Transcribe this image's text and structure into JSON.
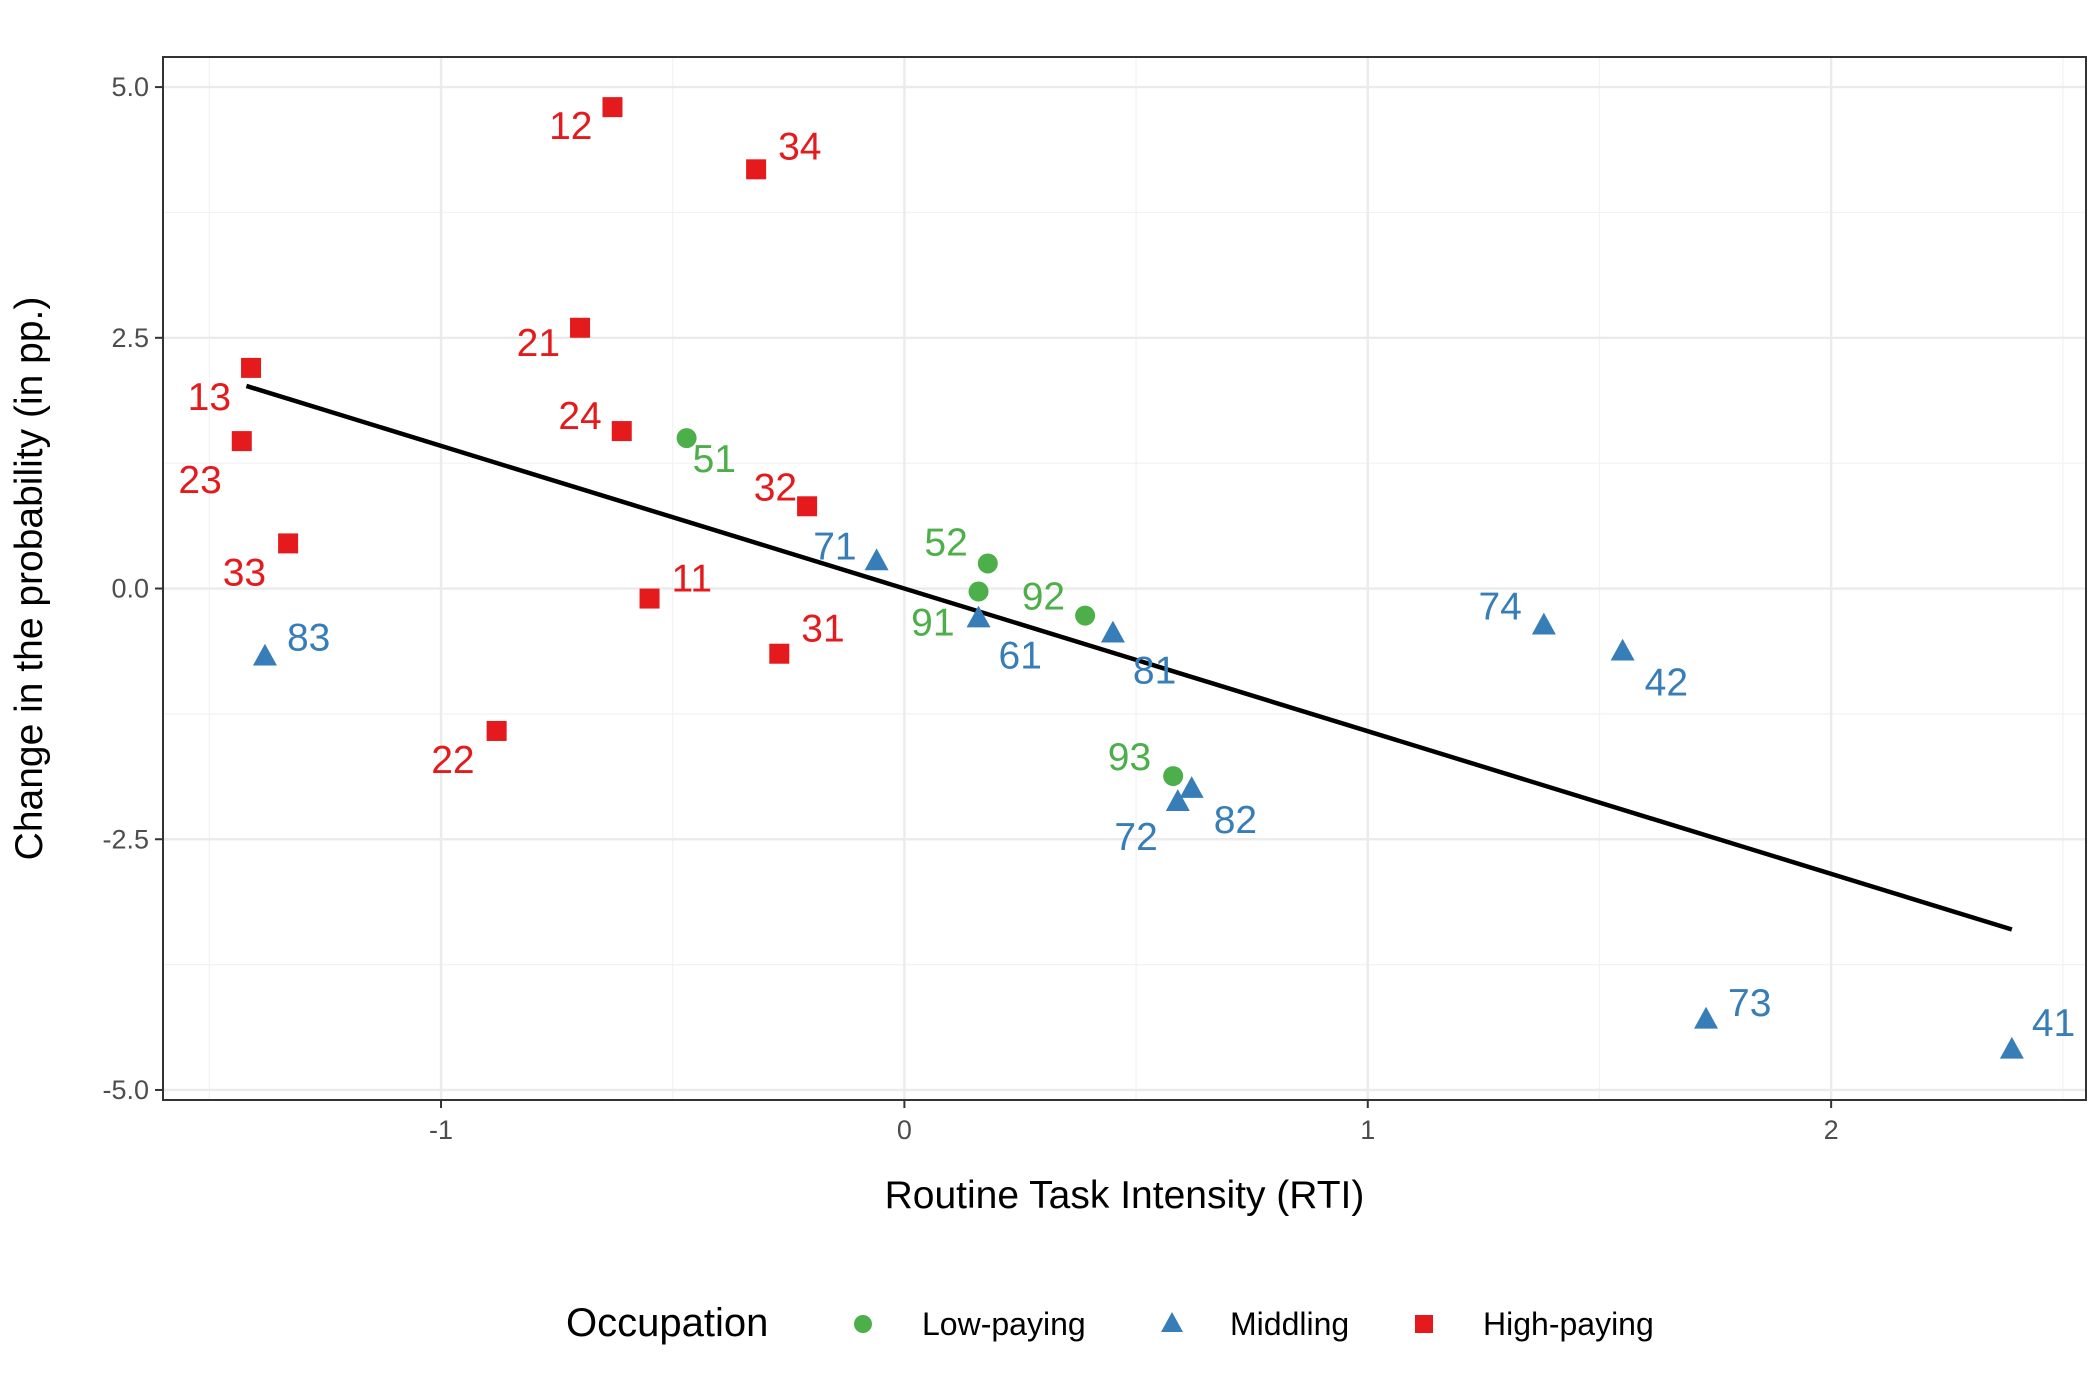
{
  "chart_data": {
    "type": "scatter",
    "title": "",
    "xlabel": "Routine Task Intensity (RTI)",
    "ylabel": "Change in the probability (in pp.)",
    "xlim": [
      -1.6,
      2.55
    ],
    "ylim": [
      -5.1,
      5.3
    ],
    "x_ticks": [
      -1,
      0,
      1,
      2
    ],
    "x_tick_labels": [
      "-1",
      "0",
      "1",
      "2"
    ],
    "y_ticks": [
      5.0,
      2.5,
      0.0,
      -2.5,
      -5.0
    ],
    "y_tick_labels": [
      "5.0",
      "2.5",
      "0.0",
      "-2.5",
      "-5.0"
    ],
    "grid": true,
    "legend": {
      "title": "Occupation",
      "position": "bottom"
    },
    "series": [
      {
        "name": "Low-paying",
        "color": "#4daf4a",
        "shape": "circle",
        "points": [
          {
            "label": "51",
            "x": -0.47,
            "y": 1.5
          },
          {
            "label": "52",
            "x": 0.18,
            "y": 0.25
          },
          {
            "label": "91",
            "x": 0.16,
            "y": -0.03
          },
          {
            "label": "92",
            "x": 0.39,
            "y": -0.27
          },
          {
            "label": "93",
            "x": 0.58,
            "y": -1.87
          }
        ]
      },
      {
        "name": "Middling",
        "color": "#377eb8",
        "shape": "triangle",
        "points": [
          {
            "label": "83",
            "x": -1.38,
            "y": -0.68
          },
          {
            "label": "71",
            "x": -0.06,
            "y": 0.27
          },
          {
            "label": "61",
            "x": 0.16,
            "y": -0.3
          },
          {
            "label": "81",
            "x": 0.45,
            "y": -0.45
          },
          {
            "label": "72",
            "x": 0.59,
            "y": -2.13
          },
          {
            "label": "82",
            "x": 0.62,
            "y": -2.0
          },
          {
            "label": "74",
            "x": 1.38,
            "y": -0.37
          },
          {
            "label": "42",
            "x": 1.55,
            "y": -0.63
          },
          {
            "label": "73",
            "x": 1.73,
            "y": -4.3
          },
          {
            "label": "41",
            "x": 2.39,
            "y": -4.6
          }
        ]
      },
      {
        "name": "High-paying",
        "color": "#e41a1c",
        "shape": "square",
        "points": [
          {
            "label": "12",
            "x": -0.63,
            "y": 4.8
          },
          {
            "label": "34",
            "x": -0.32,
            "y": 4.18
          },
          {
            "label": "21",
            "x": -0.7,
            "y": 2.6
          },
          {
            "label": "13",
            "x": -1.41,
            "y": 2.2
          },
          {
            "label": "24",
            "x": -0.61,
            "y": 1.57
          },
          {
            "label": "23",
            "x": -1.43,
            "y": 1.47
          },
          {
            "label": "32",
            "x": -0.21,
            "y": 0.82
          },
          {
            "label": "33",
            "x": -1.33,
            "y": 0.45
          },
          {
            "label": "11",
            "x": -0.55,
            "y": -0.1
          },
          {
            "label": "31",
            "x": -0.27,
            "y": -0.65
          },
          {
            "label": "22",
            "x": -0.88,
            "y": -1.42
          }
        ]
      }
    ],
    "fit_line": {
      "type": "linear",
      "color": "#000000",
      "x": [
        -1.42,
        2.39
      ],
      "y": [
        2.02,
        -3.4
      ]
    }
  }
}
